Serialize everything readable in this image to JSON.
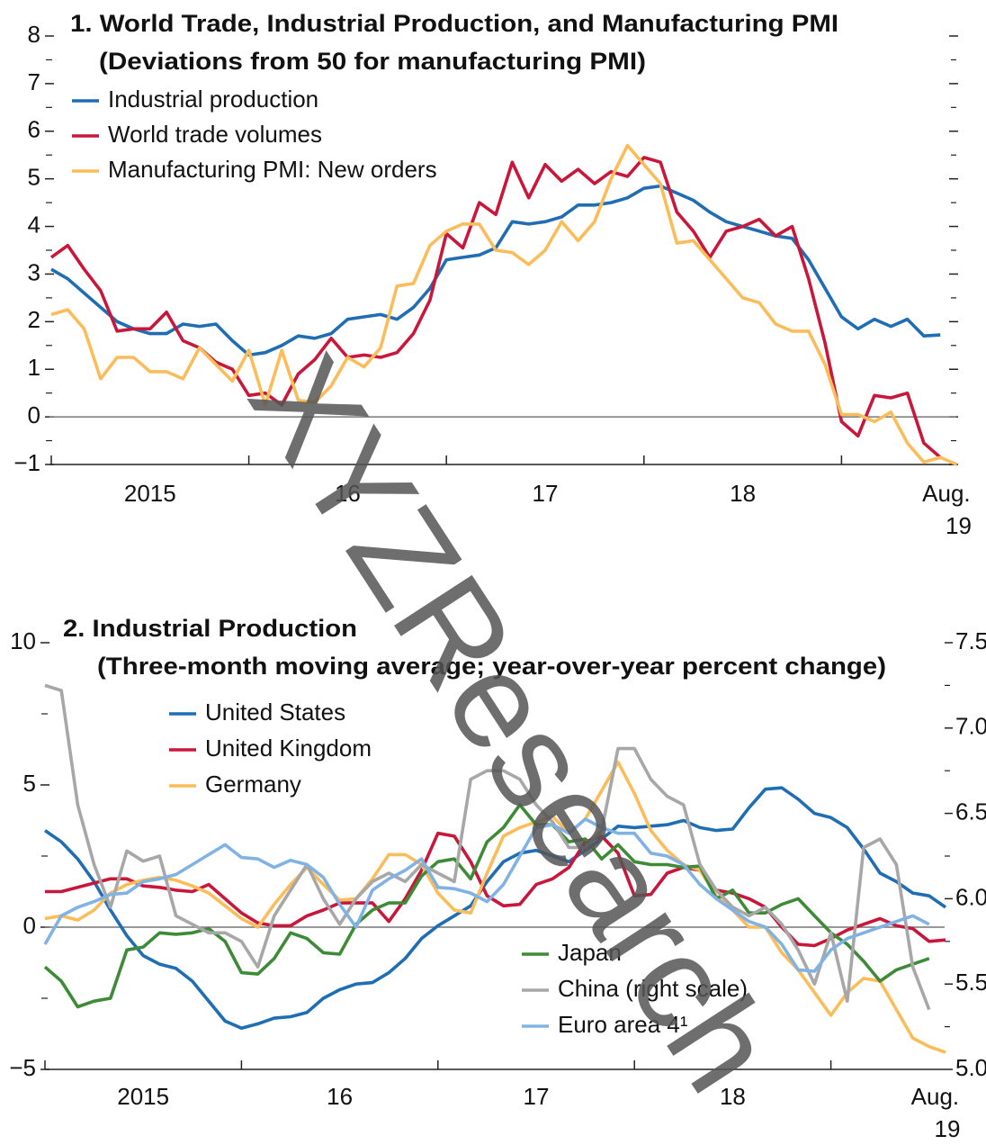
{
  "watermark": "XYZResearch",
  "chart_data": [
    {
      "type": "line",
      "title": "1. World Trade, Industrial Production, and Manufacturing PMI",
      "subtitle": "(Deviations from 50 for manufacturing PMI)",
      "categories": [
        null,
        null,
        null,
        null,
        null,
        null,
        "2015",
        null,
        null,
        null,
        null,
        null,
        null,
        null,
        null,
        null,
        null,
        null,
        "16",
        null,
        null,
        null,
        null,
        null,
        null,
        null,
        null,
        null,
        null,
        null,
        "17",
        null,
        null,
        null,
        null,
        null,
        null,
        null,
        null,
        null,
        null,
        null,
        "18",
        null,
        null,
        null,
        null,
        null,
        null,
        null,
        null,
        null,
        null,
        null,
        null,
        "Aug. 19"
      ],
      "series": [
        {
          "name": "Industrial production",
          "color": "#1f6db3",
          "values": [
            3.1,
            2.9,
            2.6,
            2.3,
            2.0,
            1.85,
            1.75,
            1.75,
            1.95,
            1.9,
            1.95,
            1.6,
            1.3,
            1.35,
            1.5,
            1.7,
            1.65,
            1.75,
            2.05,
            2.1,
            2.15,
            2.05,
            2.3,
            2.7,
            3.3,
            3.35,
            3.4,
            3.55,
            4.1,
            4.05,
            4.1,
            4.2,
            4.45,
            4.45,
            4.5,
            4.6,
            4.8,
            4.85,
            4.7,
            4.55,
            4.3,
            4.1,
            4.0,
            3.9,
            3.8,
            3.75,
            3.3,
            2.7,
            2.1,
            1.85,
            2.05,
            1.9,
            2.05,
            1.7,
            1.72,
            null
          ]
        },
        {
          "name": "World trade volumes",
          "color": "#c8173a",
          "values": [
            3.35,
            3.6,
            3.1,
            2.65,
            1.8,
            1.85,
            1.85,
            2.2,
            1.6,
            1.45,
            1.15,
            1.0,
            0.45,
            0.5,
            0.25,
            0.9,
            1.2,
            1.65,
            1.25,
            1.3,
            1.25,
            1.35,
            1.75,
            2.45,
            3.85,
            3.55,
            4.5,
            4.25,
            5.35,
            4.6,
            5.3,
            4.95,
            5.2,
            4.9,
            5.15,
            5.05,
            5.45,
            5.35,
            4.3,
            3.9,
            3.35,
            3.9,
            4.0,
            4.15,
            3.8,
            4.0,
            2.9,
            1.55,
            -0.1,
            -0.4,
            0.45,
            0.4,
            0.5,
            -0.55,
            -0.85,
            null
          ]
        },
        {
          "name": "Manufacturing PMI: New orders",
          "color": "#fbbc5a",
          "values": [
            2.15,
            2.25,
            1.85,
            0.8,
            1.25,
            1.25,
            0.95,
            0.95,
            0.8,
            1.45,
            1.1,
            0.75,
            1.4,
            0.25,
            1.4,
            0.35,
            0.3,
            0.65,
            1.25,
            1.05,
            1.45,
            2.75,
            2.8,
            3.6,
            3.9,
            4.05,
            4.05,
            3.5,
            3.45,
            3.2,
            3.5,
            4.1,
            3.7,
            4.1,
            5.0,
            5.7,
            5.3,
            4.9,
            3.65,
            3.7,
            3.3,
            2.9,
            2.5,
            2.4,
            1.95,
            1.8,
            1.8,
            1.1,
            0.05,
            0.05,
            -0.1,
            0.1,
            -0.55,
            -0.95,
            -0.85,
            -1.0
          ]
        }
      ],
      "ylim": [
        -1,
        8
      ],
      "yticks": [
        {
          "value": -1,
          "label": "−1"
        },
        0,
        1,
        2,
        3,
        4,
        5,
        6,
        7,
        8
      ]
    },
    {
      "type": "line",
      "title": "2. Industrial Production",
      "subtitle": "(Three-month moving average; year-over-year percent change)",
      "categories": [
        null,
        null,
        null,
        null,
        null,
        null,
        "2015",
        null,
        null,
        null,
        null,
        null,
        null,
        null,
        null,
        null,
        null,
        null,
        "16",
        null,
        null,
        null,
        null,
        null,
        null,
        null,
        null,
        null,
        null,
        null,
        "17",
        null,
        null,
        null,
        null,
        null,
        null,
        null,
        null,
        null,
        null,
        null,
        "18",
        null,
        null,
        null,
        null,
        null,
        null,
        null,
        null,
        null,
        null,
        null,
        null,
        "Aug. 19"
      ],
      "series": [
        {
          "name": "United States",
          "color": "#1f6db3",
          "values": [
            3.4,
            3.0,
            2.4,
            1.6,
            0.6,
            -0.3,
            -1.0,
            -1.3,
            -1.45,
            -1.9,
            -2.6,
            -3.3,
            -3.55,
            -3.4,
            -3.2,
            -3.15,
            -3.0,
            -2.5,
            -2.2,
            -2.0,
            -1.95,
            -1.6,
            -1.1,
            -0.4,
            0.05,
            0.4,
            0.75,
            1.6,
            2.3,
            2.6,
            2.7,
            2.5,
            2.3,
            2.7,
            3.1,
            3.55,
            3.5,
            3.55,
            3.6,
            3.75,
            3.5,
            3.4,
            3.45,
            4.2,
            4.85,
            4.9,
            4.5,
            4.0,
            3.85,
            3.5,
            2.75,
            1.9,
            1.6,
            1.2,
            1.1,
            0.7
          ]
        },
        {
          "name": "United Kingdom",
          "color": "#c8173a",
          "values": [
            1.25,
            1.25,
            1.4,
            1.55,
            1.7,
            1.7,
            1.45,
            1.4,
            1.3,
            1.25,
            1.5,
            1.0,
            0.5,
            0.15,
            0.05,
            0.05,
            0.4,
            0.6,
            0.85,
            0.85,
            0.85,
            0.2,
            1.0,
            2.0,
            3.3,
            3.2,
            2.3,
            1.1,
            0.75,
            0.8,
            1.5,
            1.7,
            2.1,
            3.0,
            3.2,
            2.6,
            1.1,
            1.15,
            1.9,
            2.1,
            2.0,
            1.3,
            1.2,
            1.0,
            0.7,
            0.0,
            -0.6,
            -0.65,
            -0.4,
            -0.1,
            0.1,
            0.3,
            0.05,
            -0.05,
            -0.5,
            -0.45
          ]
        },
        {
          "name": "Germany",
          "color": "#fbbc5a",
          "values": [
            0.3,
            0.4,
            0.25,
            0.6,
            1.2,
            1.5,
            1.65,
            1.75,
            1.65,
            1.45,
            1.2,
            0.75,
            0.3,
            0.0,
            0.8,
            1.5,
            2.1,
            1.5,
            0.95,
            1.0,
            1.7,
            2.55,
            2.55,
            2.2,
            1.2,
            0.6,
            0.5,
            1.9,
            3.2,
            3.5,
            3.7,
            3.9,
            3.3,
            3.8,
            4.8,
            5.8,
            4.7,
            3.4,
            2.7,
            2.2,
            2.0,
            1.1,
            0.6,
            0.0,
            0.0,
            -0.9,
            -1.5,
            -2.3,
            -3.1,
            -2.3,
            -1.8,
            -1.9,
            -2.9,
            -3.9,
            -4.2,
            -4.4
          ]
        },
        {
          "name": "Japan",
          "color": "#3d8b37",
          "values": [
            -1.4,
            -1.9,
            -2.8,
            -2.6,
            -2.5,
            -0.8,
            -0.7,
            -0.2,
            -0.25,
            -0.2,
            -0.05,
            -0.5,
            -1.6,
            -1.65,
            -1.1,
            -0.2,
            -0.4,
            -0.9,
            -0.95,
            0.1,
            0.6,
            0.85,
            0.85,
            1.8,
            2.3,
            2.4,
            1.7,
            3.0,
            3.5,
            4.3,
            3.6,
            3.6,
            3.0,
            3.1,
            2.4,
            2.9,
            2.3,
            2.2,
            2.2,
            2.1,
            2.15,
            1.0,
            1.3,
            0.5,
            0.5,
            0.8,
            1.0,
            0.4,
            -0.2,
            -0.6,
            -1.2,
            -1.9,
            -1.5,
            -1.3,
            -1.1,
            null
          ]
        },
        {
          "name": "China (right scale)",
          "color": "#a7a7a7",
          "axis": "y2",
          "values": [
            7.25,
            7.22,
            6.55,
            6.2,
            5.95,
            6.28,
            6.22,
            6.25,
            5.9,
            5.85,
            5.8,
            5.8,
            5.75,
            5.6,
            5.9,
            6.05,
            6.2,
            6.0,
            5.85,
            6.0,
            6.1,
            6.15,
            6.1,
            6.2,
            6.15,
            6.1,
            6.7,
            6.75,
            6.75,
            6.7,
            6.55,
            6.45,
            6.3,
            6.3,
            6.4,
            6.88,
            6.88,
            6.7,
            6.6,
            6.55,
            6.2,
            6.05,
            5.95,
            5.9,
            5.95,
            5.85,
            5.7,
            5.5,
            5.8,
            5.4,
            6.3,
            6.35,
            6.2,
            5.6,
            5.35,
            null
          ]
        },
        {
          "name": "Euro area 4¹",
          "color": "#80b3e3",
          "values": [
            -0.6,
            0.4,
            0.7,
            0.9,
            1.15,
            1.2,
            1.6,
            1.7,
            1.85,
            2.2,
            2.55,
            2.9,
            2.45,
            2.4,
            2.1,
            2.35,
            2.2,
            1.75,
            0.8,
            0.0,
            1.3,
            1.7,
            2.0,
            2.4,
            1.4,
            1.35,
            1.2,
            0.9,
            1.5,
            2.5,
            3.5,
            3.6,
            3.3,
            3.8,
            3.5,
            3.3,
            3.3,
            2.6,
            2.5,
            2.2,
            1.5,
            1.0,
            0.6,
            0.2,
            0.0,
            -0.6,
            -1.5,
            -1.55,
            -0.8,
            -0.4,
            -0.2,
            0.0,
            0.2,
            0.4,
            0.1,
            null
          ]
        }
      ],
      "ylim": [
        -5,
        10
      ],
      "yticks": [
        {
          "value": -5,
          "label": "−5"
        },
        0,
        5,
        10
      ],
      "y2lim": [
        5,
        7.5
      ],
      "y2ticks": [
        {
          "value": 5,
          "label": "5.0"
        },
        5.5,
        {
          "value": 6,
          "label": "6.0"
        },
        6.5,
        {
          "value": 7,
          "label": "7.0"
        },
        7.5
      ]
    }
  ]
}
